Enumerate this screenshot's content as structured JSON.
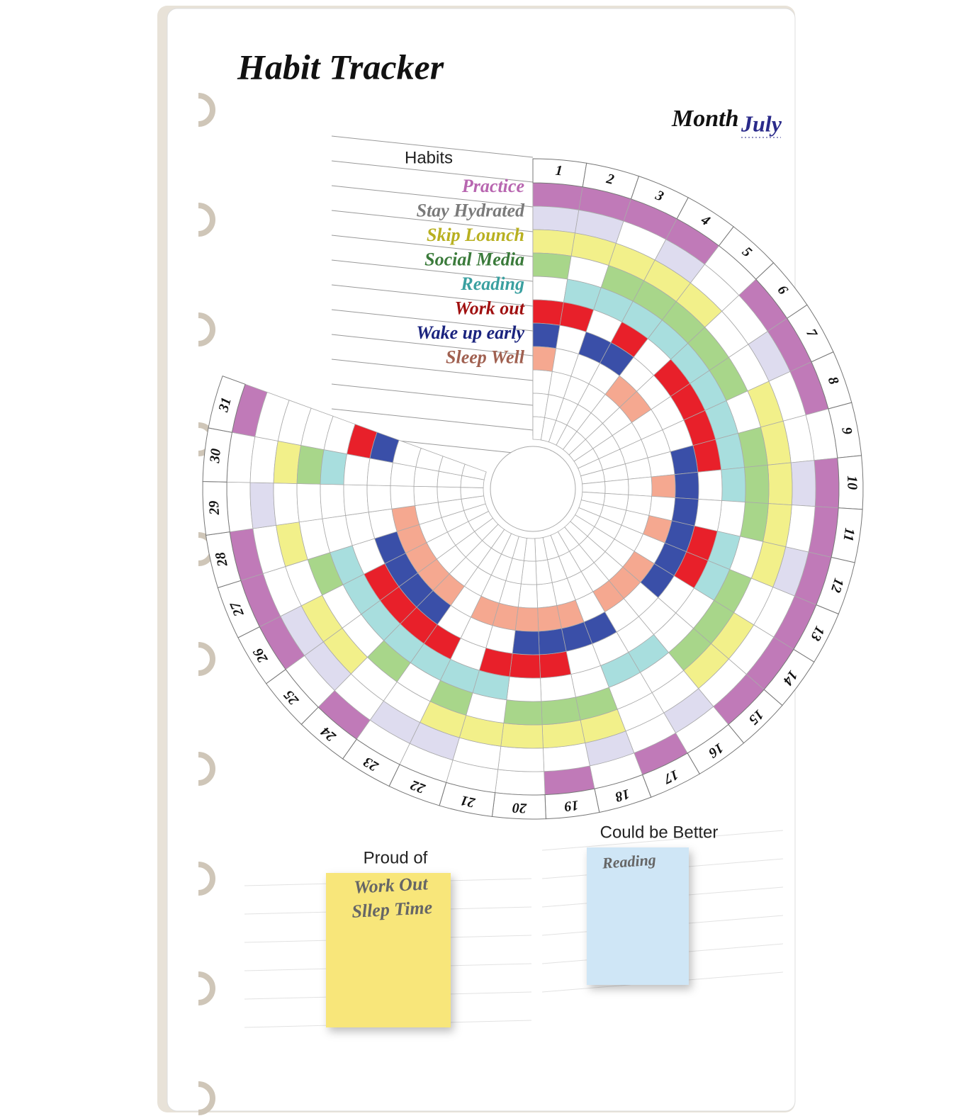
{
  "title": "Habit Tracker",
  "month": {
    "label": "Month",
    "value": "July"
  },
  "habits_header": "Habits",
  "habits": [
    {
      "name": "Practice",
      "color": "#c07ab8",
      "text_color": "#b866b0",
      "done": [
        1,
        2,
        3,
        4,
        6,
        7,
        8,
        10,
        11,
        12,
        13,
        14,
        15,
        17,
        19,
        24,
        26,
        27,
        28,
        31
      ]
    },
    {
      "name": "Stay Hydrated",
      "color": "#dedcef",
      "text_color": "#7a7a7a",
      "done": [
        1,
        2,
        4,
        7,
        10,
        12,
        16,
        18,
        22,
        23,
        25,
        26,
        29
      ]
    },
    {
      "name": "Skip Lounch",
      "color": "#f2f08a",
      "text_color": "#b8b020",
      "done": [
        1,
        2,
        3,
        4,
        5,
        8,
        9,
        10,
        11,
        12,
        14,
        15,
        18,
        19,
        20,
        21,
        22,
        25,
        26,
        28,
        30
      ]
    },
    {
      "name": "Social Media",
      "color": "#a8d68a",
      "text_color": "#3a7a3a",
      "done": [
        1,
        3,
        4,
        5,
        6,
        7,
        9,
        10,
        11,
        13,
        14,
        15,
        18,
        19,
        20,
        22,
        24,
        27,
        30
      ]
    },
    {
      "name": "Reading",
      "color": "#a8dede",
      "text_color": "#3aa0a0",
      "done": [
        2,
        3,
        4,
        5,
        6,
        7,
        8,
        9,
        10,
        12,
        13,
        16,
        17,
        21,
        22,
        23,
        24,
        25,
        26,
        27,
        30
      ]
    },
    {
      "name": "Work out",
      "color": "#e8202a",
      "text_color": "#a01010",
      "done": [
        1,
        2,
        4,
        6,
        7,
        8,
        9,
        12,
        13,
        19,
        20,
        21,
        23,
        24,
        25,
        26,
        31
      ]
    },
    {
      "name": "Wake up early",
      "color": "#3a4fa8",
      "text_color": "#1a237e",
      "done": [
        1,
        3,
        4,
        9,
        10,
        11,
        12,
        13,
        14,
        17,
        18,
        19,
        20,
        24,
        25,
        26,
        27,
        31
      ]
    },
    {
      "name": "Sleep Well",
      "color": "#f5a890",
      "text_color": "#a06050",
      "done": [
        1,
        5,
        6,
        10,
        12,
        14,
        15,
        16,
        18,
        19,
        20,
        21,
        22,
        24,
        25,
        26,
        27,
        28
      ]
    }
  ],
  "days": [
    1,
    2,
    3,
    4,
    5,
    6,
    7,
    8,
    9,
    10,
    11,
    12,
    13,
    14,
    15,
    16,
    17,
    18,
    19,
    20,
    21,
    22,
    23,
    24,
    25,
    26,
    27,
    28,
    29,
    30,
    31
  ],
  "proud_of": {
    "label": "Proud of",
    "notes": [
      "Work Out",
      "Sllep Time"
    ]
  },
  "could_be_better": {
    "label": "Could be Better",
    "notes": [
      "Reading"
    ]
  }
}
